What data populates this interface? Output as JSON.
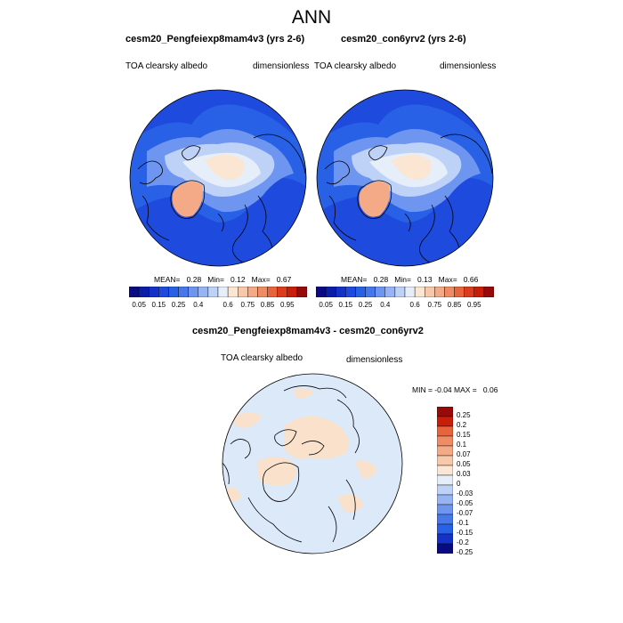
{
  "title": "ANN",
  "panels": [
    {
      "title": "cesm20_Pengfeiexp8mam4v3 (yrs 2-6)",
      "variable": "TOA clearsky albedo",
      "units": "dimensionless",
      "mean_label": "MEAN=",
      "mean": "0.28",
      "min_label": "Min=",
      "min": "0.12",
      "max_label": "Max=",
      "max": "0.67"
    },
    {
      "title": "cesm20_con6yrv2 (yrs 2-6)",
      "variable": "TOA clearsky albedo",
      "units": "dimensionless",
      "mean_label": "MEAN=",
      "mean": "0.28",
      "min_label": "Min=",
      "min": "0.13",
      "max_label": "Max=",
      "max": "0.66"
    }
  ],
  "diff_panel": {
    "title": "cesm20_Pengfeiexp8mam4v3 - cesm20_con6yrv2",
    "variable": "TOA clearsky albedo",
    "units": "dimensionless",
    "min_label": "MIN =",
    "min": "-0.04",
    "max_label": "MAX =",
    "max": "0.06"
  },
  "abs_colorbar": {
    "colors": [
      "#0a0a82",
      "#0a1ea8",
      "#1432c8",
      "#1e4bde",
      "#2860e6",
      "#4678ec",
      "#6e96f0",
      "#96b4f4",
      "#bed2f8",
      "#e6eefa",
      "#fae6d2",
      "#f8c8aa",
      "#f4aa86",
      "#f08c64",
      "#e8643c",
      "#dc3c1e",
      "#c81e0a",
      "#960a0a"
    ],
    "labels": [
      "0.05",
      "0.15",
      "0.25",
      "0.4",
      "0.6",
      "0.75",
      "0.85",
      "0.95"
    ]
  },
  "diff_colorbar": {
    "colors": [
      "#0a0a82",
      "#1432c8",
      "#2860e6",
      "#4678ec",
      "#6e96f0",
      "#96b4f4",
      "#bed2f8",
      "#e6eefa",
      "#fae6d2",
      "#f8c8aa",
      "#f4aa86",
      "#f08c64",
      "#e8643c",
      "#c81e0a",
      "#960a0a"
    ],
    "labels": [
      "0.25",
      "0.2",
      "0.15",
      "0.1",
      "0.07",
      "0.05",
      "0.03",
      "0",
      "-0.03",
      "-0.05",
      "-0.07",
      "-0.1",
      "-0.15",
      "-0.2",
      "-0.25"
    ]
  }
}
